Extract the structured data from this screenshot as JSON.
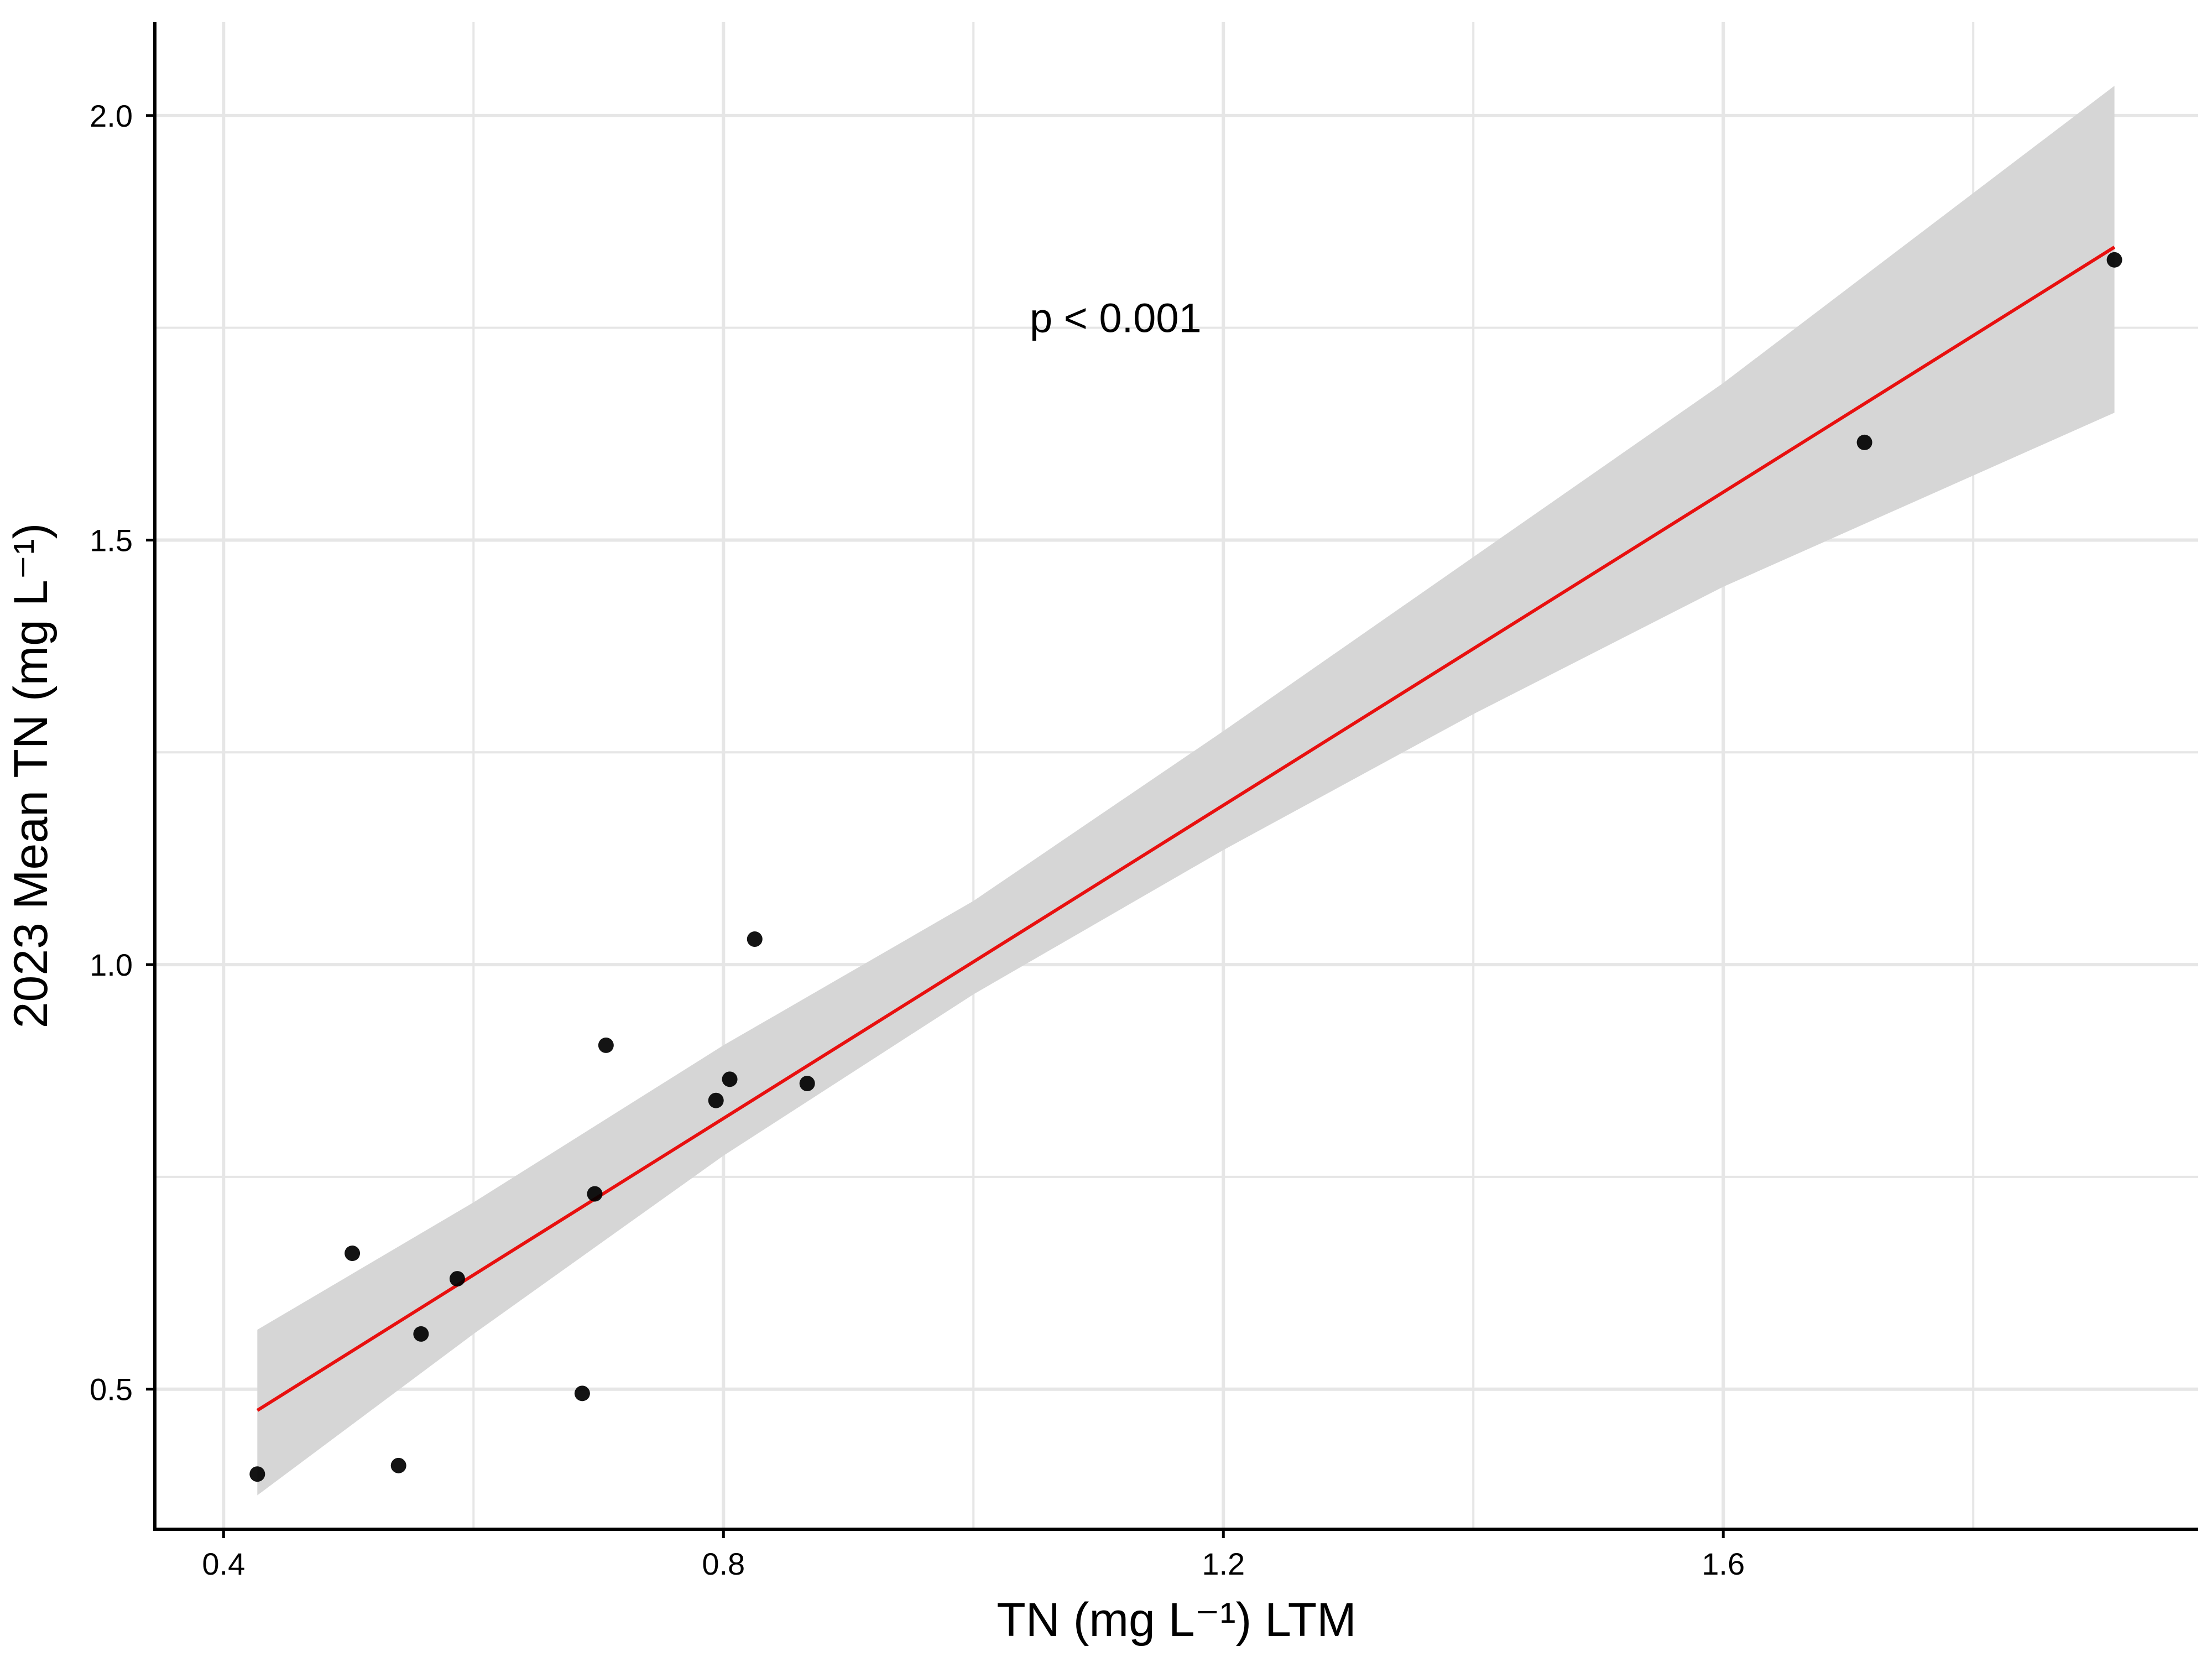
{
  "chart_data": {
    "type": "scatter",
    "xlabel": "TN (mg L⁻¹) LTM",
    "ylabel": "2023 Mean TN (mg L⁻¹)",
    "xlim": [
      0.345,
      1.98
    ],
    "ylim": [
      0.335,
      2.11
    ],
    "x_ticks": [
      {
        "value": 0.4,
        "label": "0.4"
      },
      {
        "value": 0.8,
        "label": "0.8"
      },
      {
        "value": 1.2,
        "label": "1.2"
      },
      {
        "value": 1.6,
        "label": "1.6"
      }
    ],
    "y_ticks": [
      {
        "value": 0.5,
        "label": "0.5"
      },
      {
        "value": 1.0,
        "label": "1.0"
      },
      {
        "value": 1.5,
        "label": "1.5"
      },
      {
        "value": 2.0,
        "label": "2.0"
      }
    ],
    "x_minor_grid": [
      0.6,
      1.0,
      1.4,
      1.8
    ],
    "y_minor_grid": [
      0.75,
      1.25,
      1.75
    ],
    "grid": true,
    "points": [
      {
        "x": 0.427,
        "y": 0.4
      },
      {
        "x": 0.503,
        "y": 0.66
      },
      {
        "x": 0.54,
        "y": 0.41
      },
      {
        "x": 0.558,
        "y": 0.565
      },
      {
        "x": 0.587,
        "y": 0.63
      },
      {
        "x": 0.687,
        "y": 0.495
      },
      {
        "x": 0.697,
        "y": 0.73
      },
      {
        "x": 0.706,
        "y": 0.905
      },
      {
        "x": 0.794,
        "y": 0.84
      },
      {
        "x": 0.805,
        "y": 0.865
      },
      {
        "x": 0.825,
        "y": 1.03
      },
      {
        "x": 0.867,
        "y": 0.86
      },
      {
        "x": 1.713,
        "y": 1.615
      },
      {
        "x": 1.913,
        "y": 1.83
      }
    ],
    "fit_line": {
      "x": [
        0.427,
        1.913
      ],
      "y": [
        0.475,
        1.845
      ],
      "color": "#e8100f"
    },
    "confidence_band": {
      "x": [
        0.427,
        0.6,
        0.8,
        1.0,
        1.2,
        1.4,
        1.6,
        1.913
      ],
      "lower": [
        0.375,
        0.565,
        0.775,
        0.965,
        1.135,
        1.295,
        1.445,
        1.65
      ],
      "upper": [
        0.57,
        0.72,
        0.905,
        1.075,
        1.275,
        1.48,
        1.685,
        2.035
      ],
      "color": "#d6d6d6"
    },
    "annotations": [
      {
        "text": "p < 0.001",
        "x": 1.045,
        "y": 1.745
      }
    ],
    "colors": {
      "point": "#000000",
      "grid": "#e6e6e6",
      "axis": "#000000"
    }
  }
}
